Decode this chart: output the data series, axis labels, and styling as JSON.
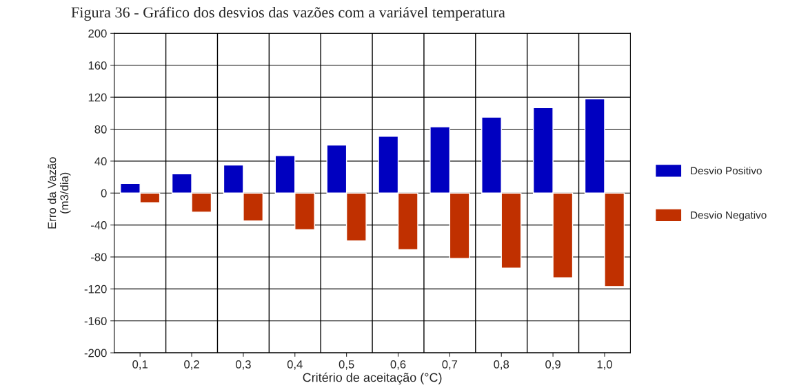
{
  "chart_data": {
    "type": "bar",
    "title": "Figura 36 - Gráfico dos desvios das vazões com a variável temperatura",
    "xlabel": "Critério de aceitação (°C)",
    "ylabel": "Erro da Vazão\n(m3/dia)",
    "categories": [
      "0,1",
      "0,2",
      "0,3",
      "0,4",
      "0,5",
      "0,6",
      "0,7",
      "0,8",
      "0,9",
      "1,0"
    ],
    "series": [
      {
        "name": "Desvio Positivo",
        "color": "#0000c0",
        "values": [
          12,
          24,
          35,
          47,
          60,
          71,
          83,
          95,
          107,
          118
        ]
      },
      {
        "name": "Desvio Negativo",
        "color": "#c03000",
        "values": [
          -12,
          -24,
          -35,
          -46,
          -60,
          -71,
          -82,
          -94,
          -106,
          -117
        ]
      }
    ],
    "ylim": [
      -200,
      200
    ],
    "yticks": [
      -200,
      -160,
      -120,
      -80,
      -40,
      0,
      40,
      80,
      120,
      160,
      200
    ],
    "grid": true,
    "legend": "right"
  }
}
